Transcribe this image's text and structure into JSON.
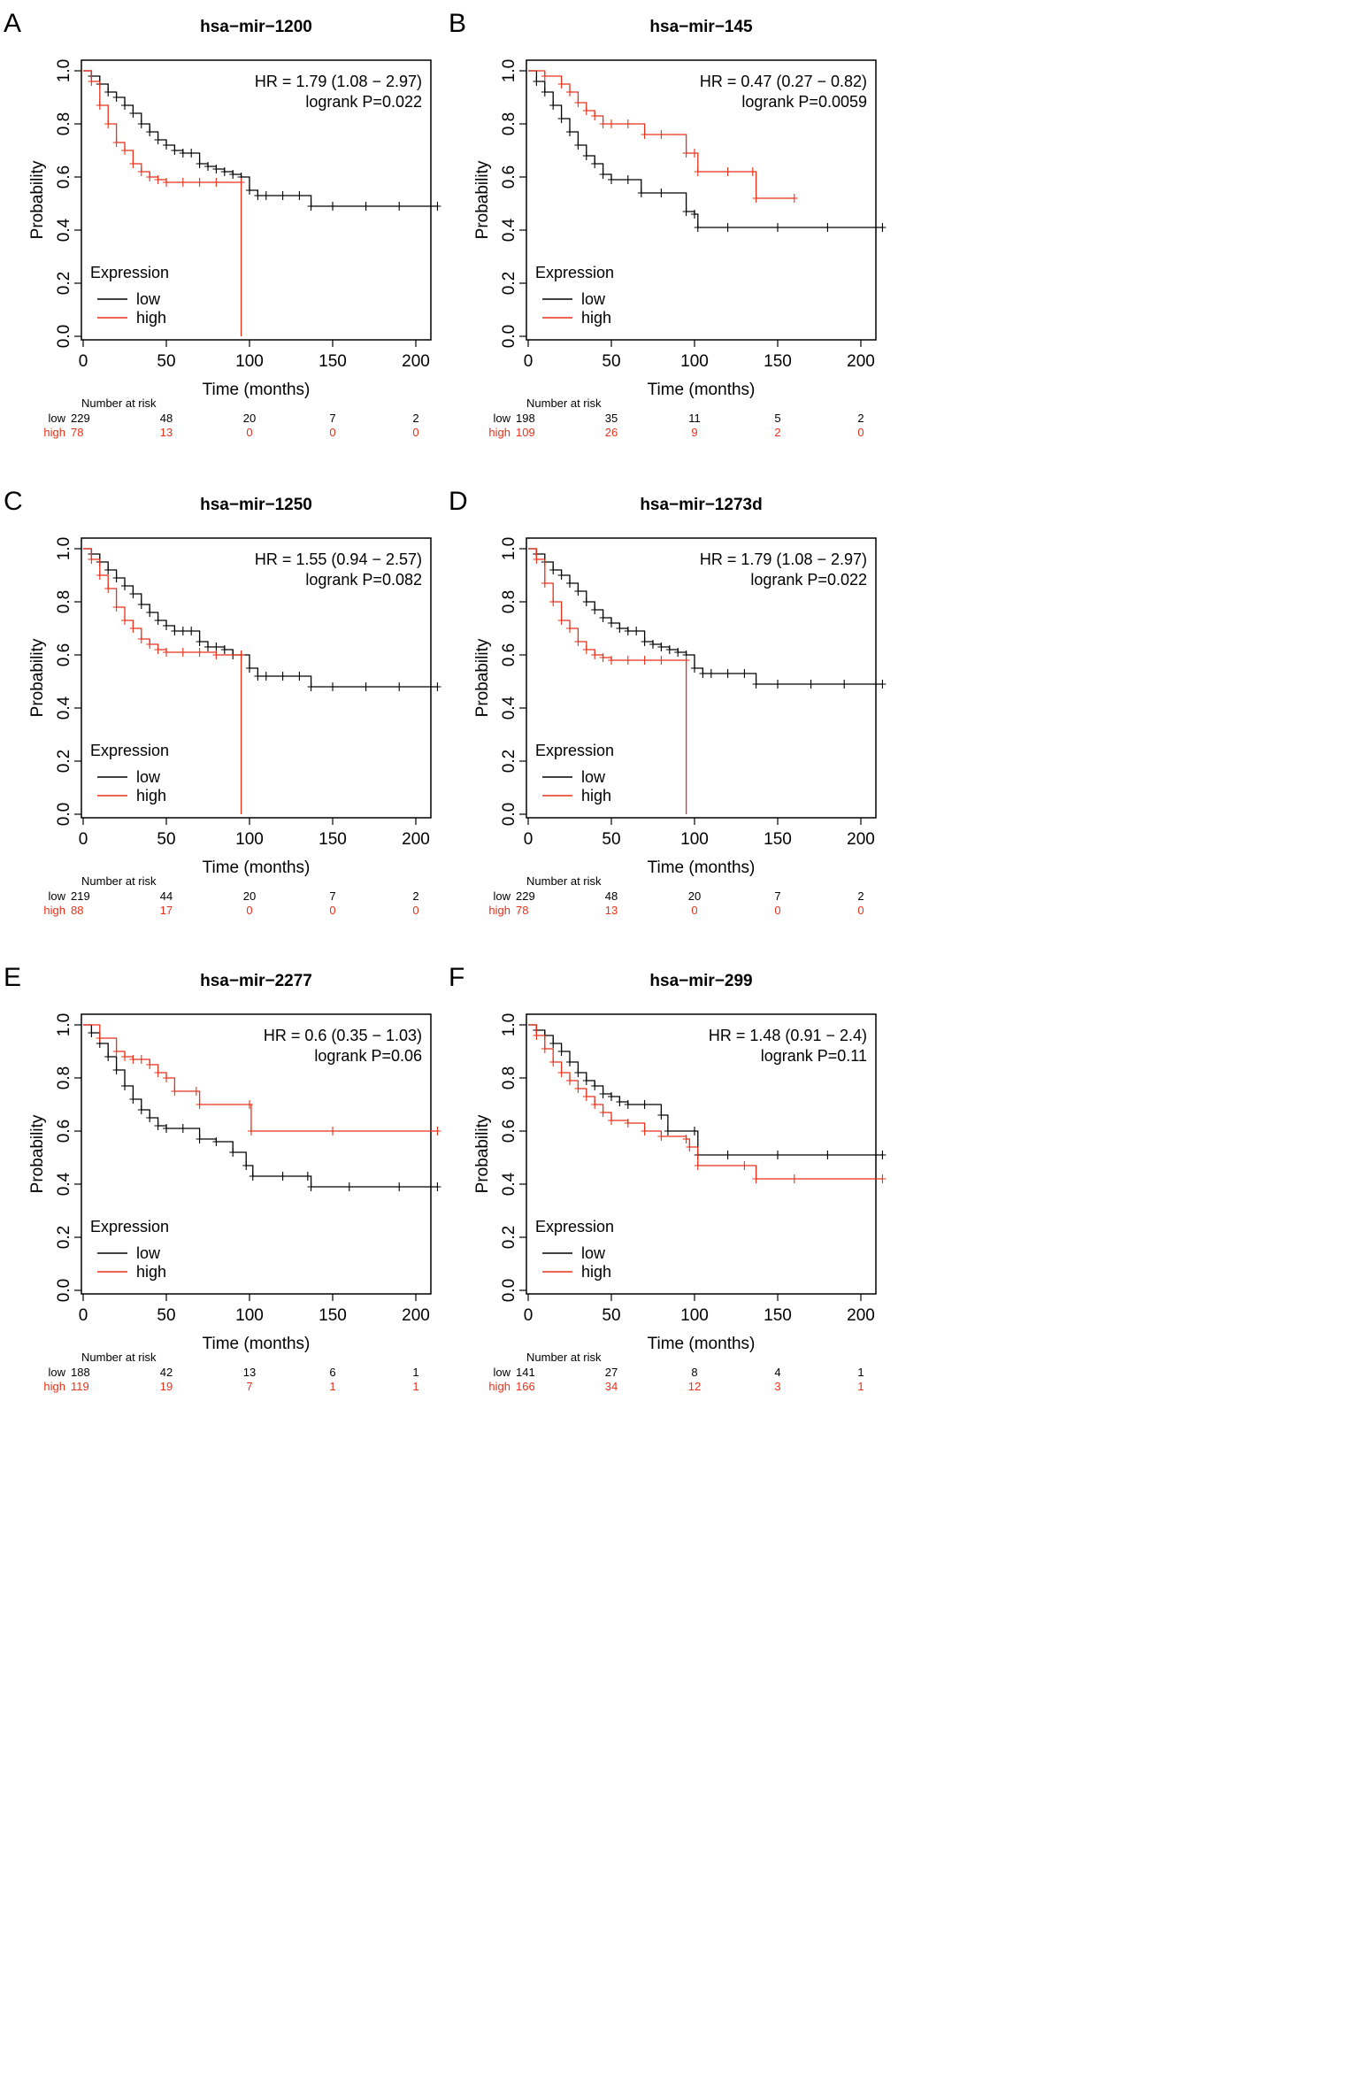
{
  "figure": {
    "panels": [
      {
        "letter": "A",
        "title": "hsa−mir−1200",
        "hr_text": "HR = 1.79 (1.08 − 2.97)",
        "logrank_text": "logrank P=0.022"
      },
      {
        "letter": "B",
        "title": "hsa−mir−145",
        "hr_text": "HR = 0.47 (0.27 − 0.82)",
        "logrank_text": "logrank P=0.0059"
      },
      {
        "letter": "C",
        "title": "hsa−mir−1250",
        "hr_text": "HR = 1.55 (0.94 − 2.57)",
        "logrank_text": "logrank P=0.082"
      },
      {
        "letter": "D",
        "title": "hsa−mir−1273d",
        "hr_text": "HR = 1.79 (1.08 − 2.97)",
        "logrank_text": "logrank P=0.022"
      },
      {
        "letter": "E",
        "title": "hsa−mir−2277",
        "hr_text": "HR = 0.6 (0.35 − 1.03)",
        "logrank_text": "logrank P=0.06"
      },
      {
        "letter": "F",
        "title": "hsa−mir−299",
        "hr_text": "HR = 1.48 (0.91 − 2.4)",
        "logrank_text": "logrank P=0.11"
      }
    ]
  },
  "colors": {
    "low": "#000000",
    "high": "#e8311a"
  },
  "chart_data": [
    {
      "type": "line",
      "panel": "A",
      "title": "hsa−mir−1200",
      "xlabel": "Time (months)",
      "ylabel": "Probability",
      "xlim": [
        0,
        215
      ],
      "ylim": [
        0,
        1.0
      ],
      "x_ticks": [
        "0",
        "50",
        "100",
        "150",
        "200"
      ],
      "y_ticks": [
        "0.0",
        "0.2",
        "0.4",
        "0.6",
        "0.8",
        "1.0"
      ],
      "legend_title": "Expression",
      "legend": [
        "low",
        "high"
      ],
      "legend_position": "bottom-left",
      "annotations": [
        "HR = 1.79 (1.08 − 2.97)",
        "logrank P=0.022"
      ],
      "series": [
        {
          "name": "low",
          "color": "#000000",
          "x": [
            0,
            5,
            10,
            15,
            20,
            25,
            30,
            35,
            40,
            45,
            50,
            55,
            60,
            65,
            70,
            75,
            80,
            85,
            90,
            95,
            100,
            105,
            110,
            120,
            130,
            137,
            150,
            170,
            190,
            213
          ],
          "y": [
            1.0,
            0.98,
            0.95,
            0.92,
            0.9,
            0.87,
            0.84,
            0.8,
            0.77,
            0.74,
            0.72,
            0.7,
            0.69,
            0.69,
            0.65,
            0.64,
            0.63,
            0.62,
            0.61,
            0.6,
            0.55,
            0.53,
            0.53,
            0.53,
            0.53,
            0.49,
            0.49,
            0.49,
            0.49,
            0.49
          ]
        },
        {
          "name": "high",
          "color": "#e8311a",
          "x": [
            0,
            5,
            10,
            15,
            20,
            25,
            30,
            35,
            40,
            45,
            50,
            60,
            70,
            80,
            95,
            95
          ],
          "y": [
            1.0,
            0.96,
            0.87,
            0.8,
            0.73,
            0.7,
            0.65,
            0.62,
            0.6,
            0.59,
            0.58,
            0.58,
            0.58,
            0.58,
            0.58,
            0.0
          ]
        }
      ],
      "number_at_risk": {
        "heading": "Number at risk",
        "rows": [
          {
            "group": "low",
            "values": [
              "229",
              "48",
              "20",
              "7",
              "2"
            ]
          },
          {
            "group": "high",
            "values": [
              "78",
              "13",
              "0",
              "0",
              "0"
            ]
          }
        ]
      }
    },
    {
      "type": "line",
      "panel": "B",
      "title": "hsa−mir−145",
      "xlabel": "Time (months)",
      "ylabel": "Probability",
      "xlim": [
        0,
        215
      ],
      "ylim": [
        0,
        1.0
      ],
      "x_ticks": [
        "0",
        "50",
        "100",
        "150",
        "200"
      ],
      "y_ticks": [
        "0.0",
        "0.2",
        "0.4",
        "0.6",
        "0.8",
        "1.0"
      ],
      "legend_title": "Expression",
      "legend": [
        "low",
        "high"
      ],
      "legend_position": "bottom-left",
      "annotations": [
        "HR = 0.47 (0.27 − 0.82)",
        "logrank P=0.0059"
      ],
      "series": [
        {
          "name": "low",
          "color": "#000000",
          "x": [
            0,
            5,
            10,
            15,
            20,
            25,
            30,
            35,
            40,
            45,
            50,
            60,
            68,
            80,
            95,
            100,
            102,
            120,
            150,
            180,
            213
          ],
          "y": [
            1.0,
            0.96,
            0.92,
            0.87,
            0.82,
            0.77,
            0.72,
            0.68,
            0.65,
            0.61,
            0.59,
            0.59,
            0.54,
            0.54,
            0.47,
            0.46,
            0.41,
            0.41,
            0.41,
            0.41,
            0.41
          ]
        },
        {
          "name": "high",
          "color": "#e8311a",
          "x": [
            0,
            10,
            20,
            25,
            30,
            35,
            40,
            45,
            50,
            60,
            70,
            80,
            95,
            100,
            102,
            120,
            135,
            137,
            160
          ],
          "y": [
            1.0,
            0.98,
            0.95,
            0.92,
            0.88,
            0.85,
            0.83,
            0.8,
            0.8,
            0.8,
            0.76,
            0.76,
            0.69,
            0.69,
            0.62,
            0.62,
            0.62,
            0.52,
            0.52
          ]
        }
      ],
      "number_at_risk": {
        "heading": "Number at risk",
        "rows": [
          {
            "group": "low",
            "values": [
              "198",
              "35",
              "11",
              "5",
              "2"
            ]
          },
          {
            "group": "high",
            "values": [
              "109",
              "26",
              "9",
              "2",
              "0"
            ]
          }
        ]
      }
    },
    {
      "type": "line",
      "panel": "C",
      "title": "hsa−mir−1250",
      "xlabel": "Time (months)",
      "ylabel": "Probability",
      "xlim": [
        0,
        215
      ],
      "ylim": [
        0,
        1.0
      ],
      "x_ticks": [
        "0",
        "50",
        "100",
        "150",
        "200"
      ],
      "y_ticks": [
        "0.0",
        "0.2",
        "0.4",
        "0.6",
        "0.8",
        "1.0"
      ],
      "legend_title": "Expression",
      "legend": [
        "low",
        "high"
      ],
      "legend_position": "bottom-left",
      "annotations": [
        "HR = 1.55 (0.94 − 2.57)",
        "logrank P=0.082"
      ],
      "series": [
        {
          "name": "low",
          "color": "#000000",
          "x": [
            0,
            5,
            10,
            15,
            20,
            25,
            30,
            35,
            40,
            45,
            50,
            55,
            60,
            65,
            70,
            75,
            80,
            85,
            90,
            95,
            100,
            105,
            110,
            120,
            130,
            137,
            150,
            170,
            190,
            213
          ],
          "y": [
            1.0,
            0.98,
            0.95,
            0.92,
            0.89,
            0.86,
            0.83,
            0.79,
            0.76,
            0.73,
            0.71,
            0.69,
            0.69,
            0.69,
            0.65,
            0.63,
            0.63,
            0.62,
            0.6,
            0.6,
            0.55,
            0.52,
            0.52,
            0.52,
            0.52,
            0.48,
            0.48,
            0.48,
            0.48,
            0.48
          ]
        },
        {
          "name": "high",
          "color": "#e8311a",
          "x": [
            0,
            5,
            10,
            15,
            20,
            25,
            30,
            35,
            40,
            45,
            50,
            60,
            70,
            80,
            95,
            95
          ],
          "y": [
            1.0,
            0.96,
            0.9,
            0.85,
            0.78,
            0.73,
            0.7,
            0.66,
            0.64,
            0.62,
            0.61,
            0.61,
            0.61,
            0.6,
            0.6,
            0.0
          ]
        }
      ],
      "number_at_risk": {
        "heading": "Number at risk",
        "rows": [
          {
            "group": "low",
            "values": [
              "219",
              "44",
              "20",
              "7",
              "2"
            ]
          },
          {
            "group": "high",
            "values": [
              "88",
              "17",
              "0",
              "0",
              "0"
            ]
          }
        ]
      }
    },
    {
      "type": "line",
      "panel": "D",
      "title": "hsa−mir−1273d",
      "xlabel": "Time (months)",
      "ylabel": "Probability",
      "xlim": [
        0,
        215
      ],
      "ylim": [
        0,
        1.0
      ],
      "x_ticks": [
        "0",
        "50",
        "100",
        "150",
        "200"
      ],
      "y_ticks": [
        "0.0",
        "0.2",
        "0.4",
        "0.6",
        "0.8",
        "1.0"
      ],
      "legend_title": "Expression",
      "legend": [
        "low",
        "high"
      ],
      "legend_position": "bottom-left",
      "annotations": [
        "HR = 1.79 (1.08 − 2.97)",
        "logrank P=0.022"
      ],
      "series": [
        {
          "name": "low",
          "color": "#000000",
          "x": [
            0,
            5,
            10,
            15,
            20,
            25,
            30,
            35,
            40,
            45,
            50,
            55,
            60,
            65,
            70,
            75,
            80,
            85,
            90,
            95,
            100,
            105,
            110,
            120,
            130,
            137,
            150,
            170,
            190,
            213
          ],
          "y": [
            1.0,
            0.98,
            0.95,
            0.92,
            0.9,
            0.87,
            0.84,
            0.8,
            0.77,
            0.74,
            0.72,
            0.7,
            0.69,
            0.69,
            0.65,
            0.64,
            0.63,
            0.62,
            0.61,
            0.6,
            0.55,
            0.53,
            0.53,
            0.53,
            0.53,
            0.49,
            0.49,
            0.49,
            0.49,
            0.49
          ]
        },
        {
          "name": "high",
          "color": "#e8311a",
          "x": [
            0,
            5,
            10,
            15,
            20,
            25,
            30,
            35,
            40,
            45,
            50,
            60,
            70,
            80,
            95,
            95
          ],
          "y": [
            1.0,
            0.96,
            0.87,
            0.8,
            0.73,
            0.7,
            0.65,
            0.62,
            0.6,
            0.59,
            0.58,
            0.58,
            0.58,
            0.58,
            0.58,
            0.0
          ]
        }
      ],
      "number_at_risk": {
        "heading": "Number at risk",
        "rows": [
          {
            "group": "low",
            "values": [
              "229",
              "48",
              "20",
              "7",
              "2"
            ]
          },
          {
            "group": "high",
            "values": [
              "78",
              "13",
              "0",
              "0",
              "0"
            ]
          }
        ]
      }
    },
    {
      "type": "line",
      "panel": "E",
      "title": "hsa−mir−2277",
      "xlabel": "Time (months)",
      "ylabel": "Probability",
      "xlim": [
        0,
        215
      ],
      "ylim": [
        0,
        1.0
      ],
      "x_ticks": [
        "0",
        "50",
        "100",
        "150",
        "200"
      ],
      "y_ticks": [
        "0.0",
        "0.2",
        "0.4",
        "0.6",
        "0.8",
        "1.0"
      ],
      "legend_title": "Expression",
      "legend": [
        "low",
        "high"
      ],
      "legend_position": "bottom-left",
      "annotations": [
        "HR = 0.6 (0.35 − 1.03)",
        "logrank P=0.06"
      ],
      "series": [
        {
          "name": "low",
          "color": "#000000",
          "x": [
            0,
            5,
            10,
            15,
            20,
            25,
            30,
            35,
            40,
            45,
            50,
            60,
            70,
            80,
            90,
            98,
            102,
            120,
            135,
            137,
            160,
            190,
            213
          ],
          "y": [
            1.0,
            0.97,
            0.93,
            0.88,
            0.83,
            0.77,
            0.72,
            0.68,
            0.65,
            0.62,
            0.61,
            0.61,
            0.57,
            0.56,
            0.52,
            0.47,
            0.43,
            0.43,
            0.43,
            0.39,
            0.39,
            0.39,
            0.39
          ]
        },
        {
          "name": "high",
          "color": "#e8311a",
          "x": [
            0,
            10,
            20,
            25,
            30,
            35,
            40,
            45,
            50,
            55,
            68,
            70,
            100,
            101,
            150,
            213
          ],
          "y": [
            1.0,
            0.95,
            0.9,
            0.88,
            0.87,
            0.87,
            0.85,
            0.82,
            0.8,
            0.75,
            0.75,
            0.7,
            0.7,
            0.6,
            0.6,
            0.6
          ]
        }
      ],
      "number_at_risk": {
        "heading": "Number at risk",
        "rows": [
          {
            "group": "low",
            "values": [
              "188",
              "42",
              "13",
              "6",
              "1"
            ]
          },
          {
            "group": "high",
            "values": [
              "119",
              "19",
              "7",
              "1",
              "1"
            ]
          }
        ]
      }
    },
    {
      "type": "line",
      "panel": "F",
      "title": "hsa−mir−299",
      "xlabel": "Time (months)",
      "ylabel": "Probability",
      "xlim": [
        0,
        215
      ],
      "ylim": [
        0,
        1.0
      ],
      "x_ticks": [
        "0",
        "50",
        "100",
        "150",
        "200"
      ],
      "y_ticks": [
        "0.0",
        "0.2",
        "0.4",
        "0.6",
        "0.8",
        "1.0"
      ],
      "legend_title": "Expression",
      "legend": [
        "low",
        "high"
      ],
      "legend_position": "bottom-left",
      "annotations": [
        "HR = 1.48 (0.91 − 2.4)",
        "logrank P=0.11"
      ],
      "series": [
        {
          "name": "low",
          "color": "#000000",
          "x": [
            0,
            5,
            10,
            15,
            20,
            25,
            30,
            35,
            40,
            45,
            50,
            55,
            60,
            70,
            80,
            84,
            100,
            102,
            120,
            150,
            180,
            213
          ],
          "y": [
            1.0,
            0.98,
            0.96,
            0.93,
            0.9,
            0.86,
            0.82,
            0.79,
            0.77,
            0.74,
            0.73,
            0.71,
            0.7,
            0.7,
            0.66,
            0.6,
            0.6,
            0.51,
            0.51,
            0.51,
            0.51,
            0.51
          ]
        },
        {
          "name": "high",
          "color": "#e8311a",
          "x": [
            0,
            5,
            10,
            15,
            20,
            25,
            30,
            35,
            40,
            45,
            50,
            60,
            70,
            80,
            95,
            97,
            102,
            130,
            137,
            160,
            213
          ],
          "y": [
            1.0,
            0.96,
            0.91,
            0.86,
            0.82,
            0.79,
            0.76,
            0.73,
            0.7,
            0.67,
            0.64,
            0.63,
            0.6,
            0.58,
            0.57,
            0.54,
            0.47,
            0.47,
            0.42,
            0.42,
            0.42
          ]
        }
      ],
      "number_at_risk": {
        "heading": "Number at risk",
        "rows": [
          {
            "group": "low",
            "values": [
              "141",
              "27",
              "8",
              "4",
              "1"
            ]
          },
          {
            "group": "high",
            "values": [
              "166",
              "34",
              "12",
              "3",
              "1"
            ]
          }
        ]
      }
    }
  ]
}
